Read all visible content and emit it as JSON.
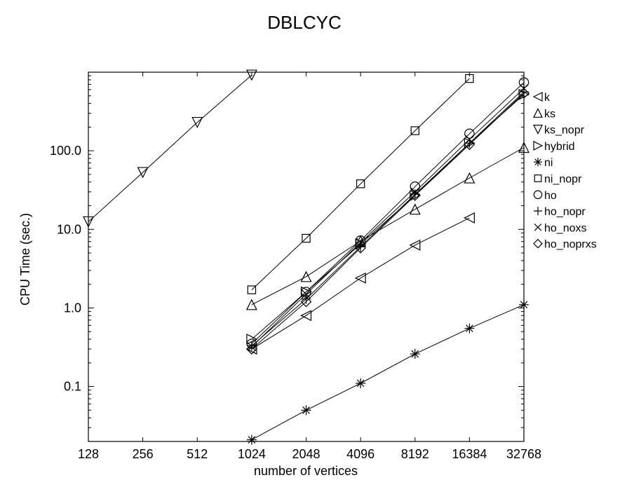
{
  "chart_data": {
    "type": "line",
    "title": "DBLCYC",
    "xlabel": "number of vertices",
    "ylabel": "CPU Time (sec.)",
    "x_scale": "log2",
    "y_scale": "log10",
    "xlim": [
      128,
      32768
    ],
    "ylim": [
      0.02,
      1000
    ],
    "x_ticks": [
      128,
      256,
      512,
      1024,
      2048,
      4096,
      8192,
      16384,
      32768
    ],
    "x_tick_labels": [
      "128",
      "256",
      "512",
      "1024",
      "2048",
      "4096",
      "8192",
      "16384",
      "32768"
    ],
    "y_ticks": [
      0.1,
      1,
      10,
      100
    ],
    "y_tick_labels": [
      "0.1",
      "1.0",
      "10.0",
      "100.0"
    ],
    "grid": false,
    "legend_position": "right",
    "series": [
      {
        "name": "k",
        "marker": "triangle-left",
        "points": [
          [
            1024,
            0.3
          ],
          [
            2048,
            0.8
          ],
          [
            4096,
            2.4
          ],
          [
            8192,
            6.3
          ],
          [
            16384,
            14
          ]
        ]
      },
      {
        "name": "ks",
        "marker": "triangle-up",
        "points": [
          [
            1024,
            1.1
          ],
          [
            2048,
            2.5
          ],
          [
            4096,
            7.1
          ],
          [
            8192,
            18
          ],
          [
            16384,
            45
          ],
          [
            32768,
            110
          ]
        ]
      },
      {
        "name": "ks_nopr",
        "marker": "triangle-down",
        "points": [
          [
            128,
            12.5
          ],
          [
            256,
            53
          ],
          [
            512,
            230
          ],
          [
            1024,
            920
          ]
        ]
      },
      {
        "name": "hybrid",
        "marker": "triangle-right",
        "points": [
          [
            1024,
            0.4
          ],
          [
            2048,
            1.6
          ],
          [
            4096,
            6.5
          ],
          [
            8192,
            27
          ],
          [
            16384,
            125
          ],
          [
            32768,
            520
          ]
        ]
      },
      {
        "name": "ni",
        "marker": "asterisk",
        "points": [
          [
            1024,
            0.021
          ],
          [
            2048,
            0.05
          ],
          [
            4096,
            0.11
          ],
          [
            8192,
            0.26
          ],
          [
            16384,
            0.55
          ],
          [
            32768,
            1.1
          ]
        ]
      },
      {
        "name": "ni_nopr",
        "marker": "square",
        "points": [
          [
            1024,
            1.7
          ],
          [
            2048,
            7.7
          ],
          [
            4096,
            38
          ],
          [
            8192,
            180
          ],
          [
            16384,
            830
          ]
        ]
      },
      {
        "name": "ho",
        "marker": "circle",
        "points": [
          [
            1024,
            0.35
          ],
          [
            2048,
            1.6
          ],
          [
            4096,
            7.2
          ],
          [
            8192,
            35
          ],
          [
            16384,
            165
          ],
          [
            32768,
            740
          ]
        ]
      },
      {
        "name": "ho_nopr",
        "marker": "plus",
        "points": [
          [
            1024,
            0.33
          ],
          [
            2048,
            1.3
          ],
          [
            4096,
            6.0
          ],
          [
            8192,
            28
          ],
          [
            16384,
            125
          ],
          [
            32768,
            560
          ]
        ]
      },
      {
        "name": "ho_noxs",
        "marker": "cross",
        "points": [
          [
            1024,
            0.32
          ],
          [
            2048,
            1.5
          ],
          [
            4096,
            6.8
          ],
          [
            8192,
            30
          ],
          [
            16384,
            140
          ],
          [
            32768,
            620
          ]
        ]
      },
      {
        "name": "ho_noprxs",
        "marker": "diamond",
        "points": [
          [
            1024,
            0.3
          ],
          [
            2048,
            1.2
          ],
          [
            4096,
            5.8
          ],
          [
            8192,
            27
          ],
          [
            16384,
            120
          ],
          [
            32768,
            540
          ]
        ]
      }
    ]
  }
}
